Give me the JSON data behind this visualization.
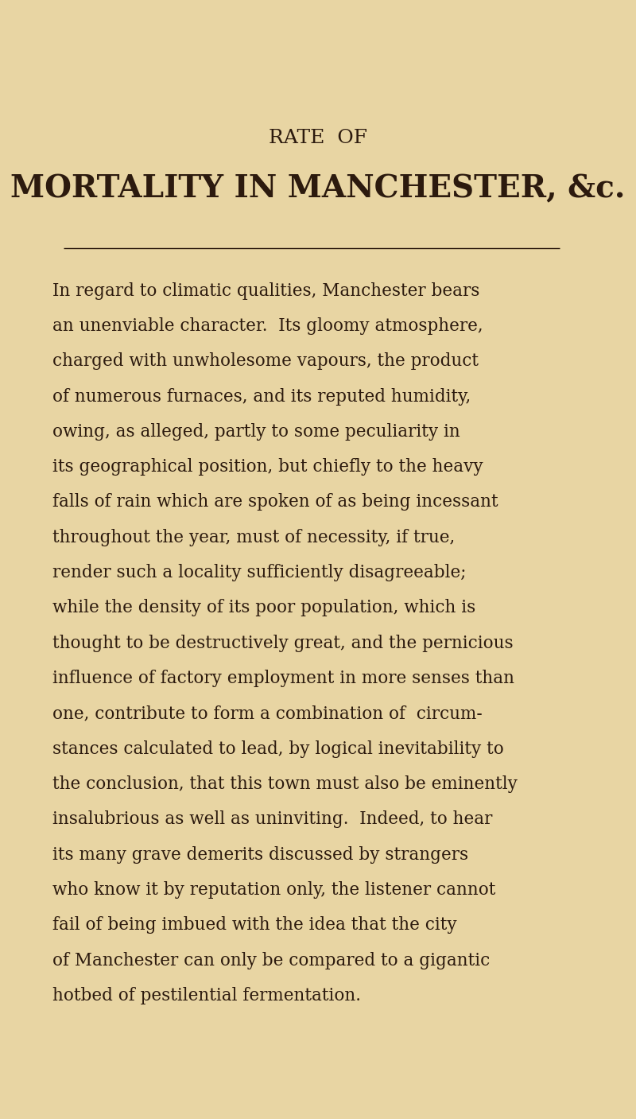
{
  "background_color": "#E8D5A3",
  "text_color": "#2C1A0E",
  "title_line1": "RATE  OF",
  "title_line2": "MORTALITY IN MANCHESTER, &c.",
  "title_line1_fontsize": 18,
  "title_line2_fontsize": 28,
  "body_fontsize": 15.5,
  "fig_width": 8.0,
  "fig_height": 14.07,
  "lines": [
    "In regard to climatic qualities, Manchester bears",
    "an unenviable character.  Its gloomy atmosphere,",
    "charged with unwholesome vapours, the product",
    "of numerous furnaces, and its reputed humidity,",
    "owing, as alleged, partly to some peculiarity in",
    "its geographical position, but chiefly to the heavy",
    "falls of rain which are spoken of as being incessant",
    "throughout the year, must of necessity, if true,",
    "render such a locality sufficiently disagreeable;",
    "while the density of its poor population, which is",
    "thought to be destructively great, and the pernicious",
    "influence of factory employment in more senses than",
    "one, contribute to form a combination of  circum-",
    "stances calculated to lead, by logical inevitability to",
    "the conclusion, that this town must also be eminently",
    "insalubrious as well as uninviting.  Indeed, to hear",
    "its many grave demerits discussed by strangers",
    "who know it by reputation only, the listener cannot",
    "fail of being imbued with the idea that the city",
    "of Manchester can only be compared to a gigantic",
    "hotbed of pestilential fermentation."
  ]
}
